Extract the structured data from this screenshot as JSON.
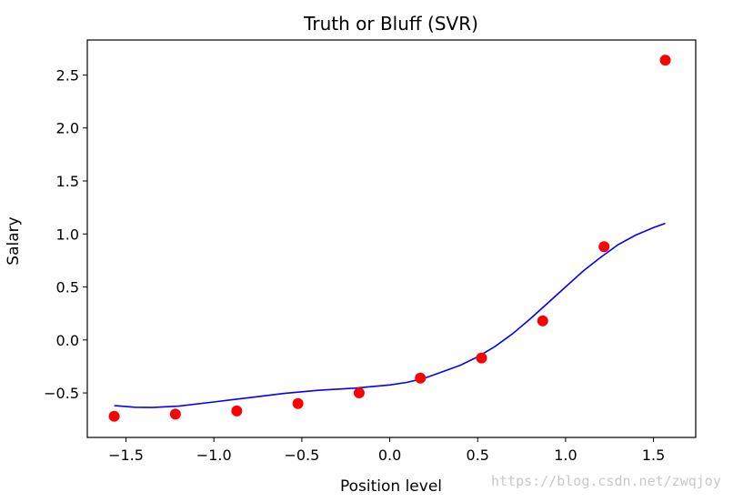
{
  "chart_data": {
    "type": "scatter",
    "title": "Truth or Bluff (SVR)",
    "xlabel": "Position level",
    "ylabel": "Salary",
    "xlim": [
      -1.72,
      1.74
    ],
    "ylim": [
      -0.92,
      2.83
    ],
    "xticks": [
      -1.5,
      -1.0,
      -0.5,
      0.0,
      0.5,
      1.0,
      1.5
    ],
    "xtick_labels": [
      "−1.5",
      "−1.0",
      "−0.5",
      "0.0",
      "0.5",
      "1.0",
      "1.5"
    ],
    "yticks": [
      -0.5,
      0.0,
      0.5,
      1.0,
      1.5,
      2.0,
      2.5
    ],
    "ytick_labels": [
      "−0.5",
      "0.0",
      "0.5",
      "1.0",
      "1.5",
      "2.0",
      "2.5"
    ],
    "grid": false,
    "series": [
      {
        "kind": "scatter",
        "color": "#ff0000",
        "points": [
          {
            "x": -1.567,
            "y": -0.72
          },
          {
            "x": -1.219,
            "y": -0.7
          },
          {
            "x": -0.87,
            "y": -0.67
          },
          {
            "x": -0.522,
            "y": -0.6
          },
          {
            "x": -0.174,
            "y": -0.5
          },
          {
            "x": 0.174,
            "y": -0.36
          },
          {
            "x": 0.522,
            "y": -0.17
          },
          {
            "x": 0.87,
            "y": 0.18
          },
          {
            "x": 1.219,
            "y": 0.88
          },
          {
            "x": 1.567,
            "y": 2.64
          }
        ]
      },
      {
        "kind": "line",
        "color": "#0000ff",
        "points": [
          {
            "x": -1.567,
            "y": -0.62
          },
          {
            "x": -1.45,
            "y": -0.635
          },
          {
            "x": -1.35,
            "y": -0.638
          },
          {
            "x": -1.2,
            "y": -0.625
          },
          {
            "x": -1.0,
            "y": -0.585
          },
          {
            "x": -0.8,
            "y": -0.545
          },
          {
            "x": -0.6,
            "y": -0.505
          },
          {
            "x": -0.4,
            "y": -0.475
          },
          {
            "x": -0.2,
            "y": -0.455
          },
          {
            "x": 0.0,
            "y": -0.425
          },
          {
            "x": 0.1,
            "y": -0.4
          },
          {
            "x": 0.2,
            "y": -0.36
          },
          {
            "x": 0.3,
            "y": -0.3
          },
          {
            "x": 0.4,
            "y": -0.24
          },
          {
            "x": 0.5,
            "y": -0.16
          },
          {
            "x": 0.6,
            "y": -0.06
          },
          {
            "x": 0.7,
            "y": 0.06
          },
          {
            "x": 0.8,
            "y": 0.2
          },
          {
            "x": 0.9,
            "y": 0.35
          },
          {
            "x": 1.0,
            "y": 0.5
          },
          {
            "x": 1.1,
            "y": 0.65
          },
          {
            "x": 1.2,
            "y": 0.78
          },
          {
            "x": 1.3,
            "y": 0.9
          },
          {
            "x": 1.4,
            "y": 0.99
          },
          {
            "x": 1.5,
            "y": 1.06
          },
          {
            "x": 1.567,
            "y": 1.1
          }
        ]
      }
    ]
  },
  "watermark": "https://blog.csdn.net/zwqjoy"
}
